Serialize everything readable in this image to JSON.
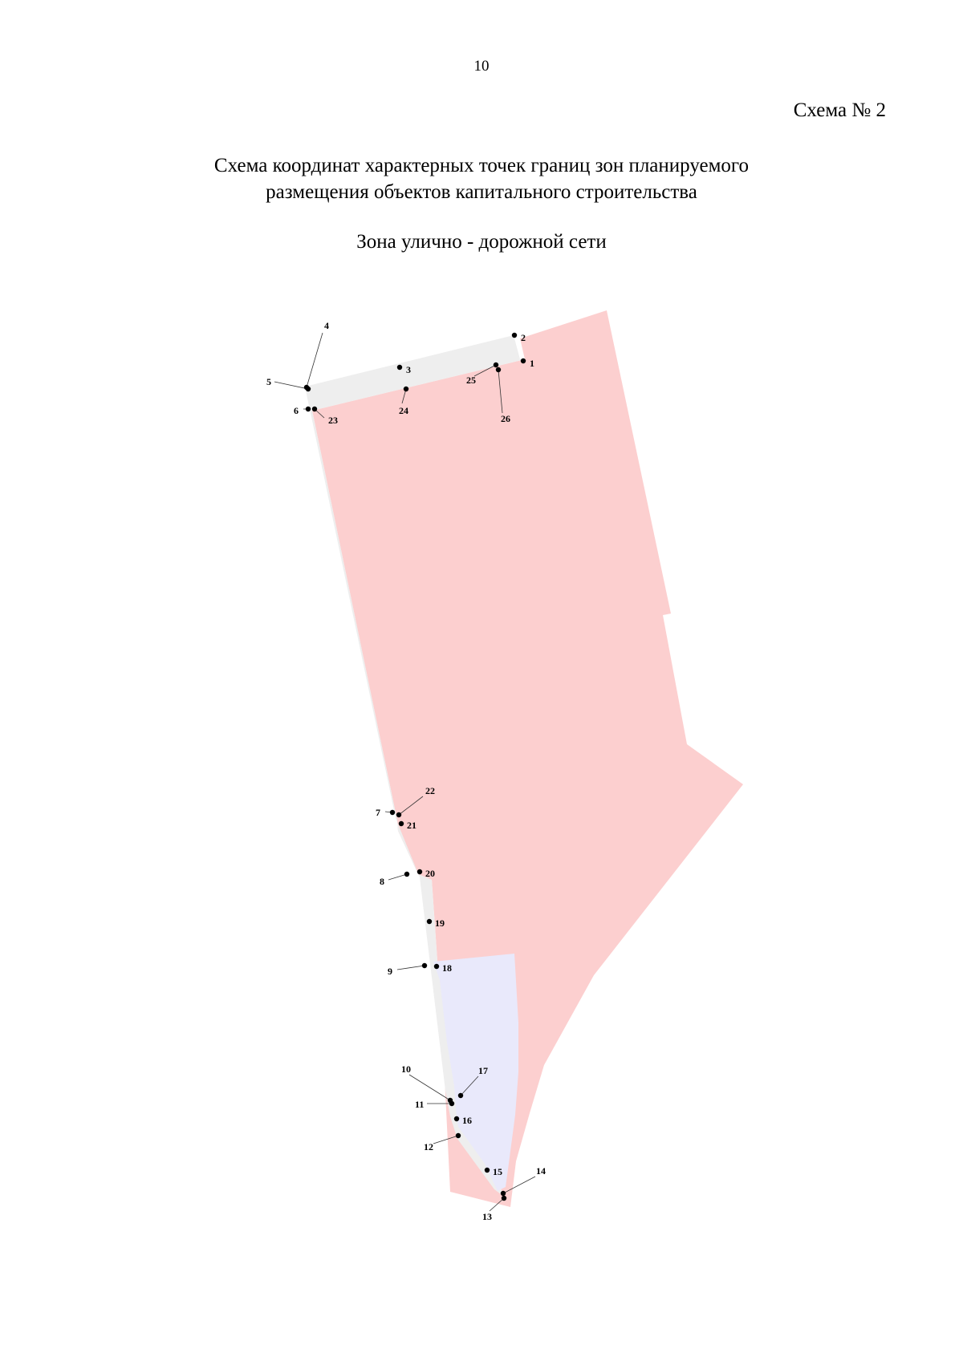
{
  "page": {
    "number": "10"
  },
  "scheme": {
    "label": "Схема № 2",
    "title_line1": "Схема координат характерных точек границ зон планируемого",
    "title_line2": "размещения объектов капитального строительства",
    "zone_title": "Зона улично - дорожной сети"
  },
  "map": {
    "colors": {
      "planned_zone_fill": "#fccfcf",
      "road_zone_fill": "#eeeeee",
      "other_zone_fill": "#e9e9fb",
      "point_color": "#000000",
      "leader_color": "#333333"
    },
    "points": [
      {
        "id": "1",
        "label": "1"
      },
      {
        "id": "2",
        "label": "2"
      },
      {
        "id": "3",
        "label": "3"
      },
      {
        "id": "4",
        "label": "4"
      },
      {
        "id": "5",
        "label": "5"
      },
      {
        "id": "6",
        "label": "6"
      },
      {
        "id": "7",
        "label": "7"
      },
      {
        "id": "8",
        "label": "8"
      },
      {
        "id": "9",
        "label": "9"
      },
      {
        "id": "10",
        "label": "10"
      },
      {
        "id": "11",
        "label": "11"
      },
      {
        "id": "12",
        "label": "12"
      },
      {
        "id": "13",
        "label": "13"
      },
      {
        "id": "14",
        "label": "14"
      },
      {
        "id": "15",
        "label": "15"
      },
      {
        "id": "16",
        "label": "16"
      },
      {
        "id": "17",
        "label": "17"
      },
      {
        "id": "18",
        "label": "18"
      },
      {
        "id": "19",
        "label": "19"
      },
      {
        "id": "20",
        "label": "20"
      },
      {
        "id": "21",
        "label": "21"
      },
      {
        "id": "22",
        "label": "22"
      },
      {
        "id": "23",
        "label": "23"
      },
      {
        "id": "24",
        "label": "24"
      },
      {
        "id": "25",
        "label": "25"
      },
      {
        "id": "26",
        "label": "26"
      }
    ]
  }
}
